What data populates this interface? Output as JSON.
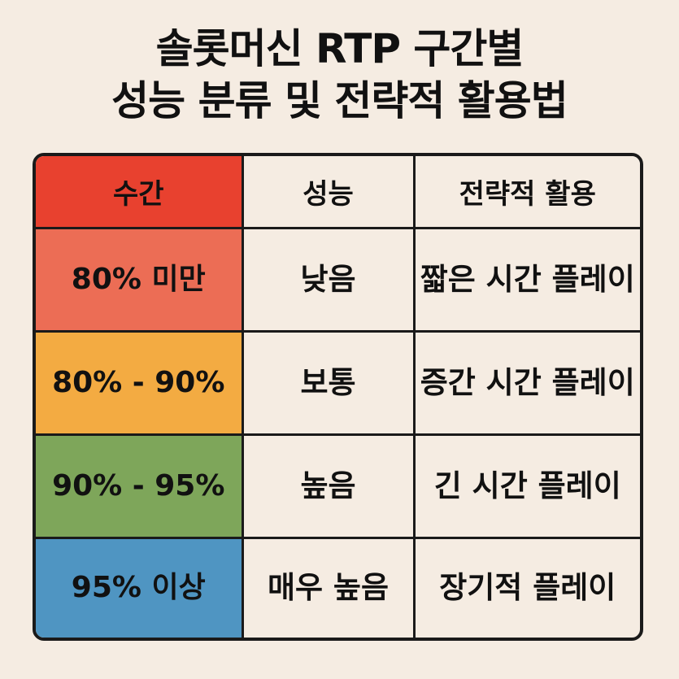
{
  "title": {
    "line1": "솔롯머신 RTP 구간별",
    "line2": "성능 분류 및 전략적 활용법"
  },
  "table": {
    "headers": [
      "수간",
      "성능",
      "전략적 활용"
    ],
    "header_colors": [
      "#e8412f",
      "#f5ece2",
      "#f5ece2"
    ],
    "rows": [
      {
        "range": "80% 미만",
        "performance": "낮음",
        "strategy": "짧은 시간 플레이",
        "color": "#ec6d55"
      },
      {
        "range": "80% - 90%",
        "performance": "보통",
        "strategy": "증간 시간 플레이",
        "color": "#f3ab42"
      },
      {
        "range": "90% - 95%",
        "performance": "높음",
        "strategy": "긴 시간 플레이",
        "color": "#7ea65a"
      },
      {
        "range": "95% 이상",
        "performance": "매우 높음",
        "strategy": "장기적 플레이",
        "color": "#4f95c2"
      }
    ]
  }
}
